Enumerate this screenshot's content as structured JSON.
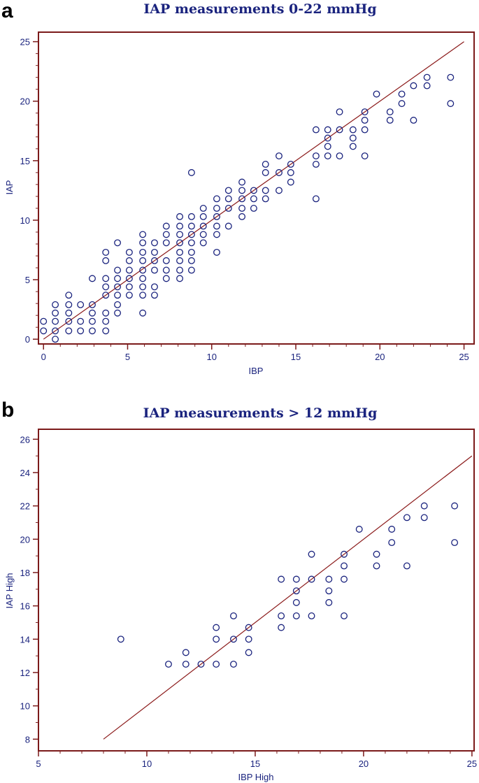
{
  "colors": {
    "frame": "#7b1a1a",
    "point": "#1a237e",
    "line": "#8b1a1a",
    "text": "#1a237e"
  },
  "chart_data": [
    {
      "panel": "a",
      "type": "scatter",
      "title": "IAP measurements 0-22 mmHg",
      "xlabel": "IBP",
      "ylabel": "IAP",
      "xlim": [
        -0.3,
        25.6
      ],
      "ylim": [
        -0.4,
        25.8
      ],
      "xticks": [
        0,
        5,
        10,
        15,
        20,
        25
      ],
      "yticks": [
        0,
        5,
        10,
        15,
        20,
        25
      ],
      "minor_x": 1,
      "minor_y": 1,
      "fit_line": [
        [
          0,
          0
        ],
        [
          25,
          25
        ]
      ],
      "points": [
        [
          0,
          0.7
        ],
        [
          0,
          1.5
        ],
        [
          0.7,
          0
        ],
        [
          0.7,
          0.7
        ],
        [
          0.7,
          1.5
        ],
        [
          0.7,
          2.2
        ],
        [
          0.7,
          2.9
        ],
        [
          1.5,
          0.7
        ],
        [
          1.5,
          1.5
        ],
        [
          1.5,
          2.2
        ],
        [
          1.5,
          2.9
        ],
        [
          1.5,
          3.7
        ],
        [
          2.2,
          0.7
        ],
        [
          2.2,
          1.5
        ],
        [
          2.2,
          2.9
        ],
        [
          2.9,
          0.7
        ],
        [
          2.9,
          1.5
        ],
        [
          2.9,
          2.2
        ],
        [
          2.9,
          2.9
        ],
        [
          2.9,
          5.1
        ],
        [
          3.7,
          0.7
        ],
        [
          3.7,
          1.5
        ],
        [
          3.7,
          2.2
        ],
        [
          3.7,
          3.7
        ],
        [
          3.7,
          4.4
        ],
        [
          3.7,
          5.1
        ],
        [
          3.7,
          6.6
        ],
        [
          3.7,
          7.3
        ],
        [
          4.4,
          2.2
        ],
        [
          4.4,
          2.9
        ],
        [
          4.4,
          3.7
        ],
        [
          4.4,
          4.4
        ],
        [
          4.4,
          5.1
        ],
        [
          4.4,
          5.8
        ],
        [
          4.4,
          8.1
        ],
        [
          5.1,
          3.7
        ],
        [
          5.1,
          4.4
        ],
        [
          5.1,
          5.1
        ],
        [
          5.1,
          5.8
        ],
        [
          5.1,
          6.6
        ],
        [
          5.1,
          7.3
        ],
        [
          5.9,
          2.2
        ],
        [
          5.9,
          3.7
        ],
        [
          5.9,
          4.4
        ],
        [
          5.9,
          5.1
        ],
        [
          5.9,
          5.8
        ],
        [
          5.9,
          6.6
        ],
        [
          5.9,
          7.3
        ],
        [
          5.9,
          8.1
        ],
        [
          5.9,
          8.8
        ],
        [
          6.6,
          3.7
        ],
        [
          6.6,
          4.4
        ],
        [
          6.6,
          5.8
        ],
        [
          6.6,
          6.6
        ],
        [
          6.6,
          7.3
        ],
        [
          6.6,
          8.1
        ],
        [
          7.3,
          5.1
        ],
        [
          7.3,
          5.8
        ],
        [
          7.3,
          6.6
        ],
        [
          7.3,
          8.1
        ],
        [
          7.3,
          8.8
        ],
        [
          7.3,
          9.5
        ],
        [
          8.1,
          5.1
        ],
        [
          8.1,
          5.8
        ],
        [
          8.1,
          6.6
        ],
        [
          8.1,
          7.3
        ],
        [
          8.1,
          8.1
        ],
        [
          8.1,
          8.8
        ],
        [
          8.1,
          9.5
        ],
        [
          8.1,
          10.3
        ],
        [
          8.8,
          5.8
        ],
        [
          8.8,
          6.6
        ],
        [
          8.8,
          7.3
        ],
        [
          8.8,
          8.1
        ],
        [
          8.8,
          8.8
        ],
        [
          8.8,
          9.5
        ],
        [
          8.8,
          10.3
        ],
        [
          8.8,
          14
        ],
        [
          9.5,
          8.1
        ],
        [
          9.5,
          8.8
        ],
        [
          9.5,
          9.5
        ],
        [
          9.5,
          10.3
        ],
        [
          9.5,
          11
        ],
        [
          10.3,
          7.3
        ],
        [
          10.3,
          8.8
        ],
        [
          10.3,
          9.5
        ],
        [
          10.3,
          10.3
        ],
        [
          10.3,
          11
        ],
        [
          10.3,
          11.8
        ],
        [
          11,
          9.5
        ],
        [
          11,
          11
        ],
        [
          11,
          11.8
        ],
        [
          11,
          12.5
        ],
        [
          11.8,
          10.3
        ],
        [
          11.8,
          11
        ],
        [
          11.8,
          11.8
        ],
        [
          11.8,
          12.5
        ],
        [
          11.8,
          13.2
        ],
        [
          12.5,
          11
        ],
        [
          12.5,
          11.8
        ],
        [
          12.5,
          12.5
        ],
        [
          13.2,
          11.8
        ],
        [
          13.2,
          12.5
        ],
        [
          13.2,
          14
        ],
        [
          13.2,
          14.7
        ],
        [
          14,
          12.5
        ],
        [
          14,
          14
        ],
        [
          14,
          15.4
        ],
        [
          14.7,
          13.2
        ],
        [
          14.7,
          14
        ],
        [
          14.7,
          14.7
        ],
        [
          16.2,
          11.8
        ],
        [
          16.2,
          14.7
        ],
        [
          16.2,
          15.4
        ],
        [
          16.2,
          17.6
        ],
        [
          16.9,
          15.4
        ],
        [
          16.9,
          16.2
        ],
        [
          16.9,
          16.9
        ],
        [
          16.9,
          17.6
        ],
        [
          17.6,
          15.4
        ],
        [
          17.6,
          17.6
        ],
        [
          17.6,
          19.1
        ],
        [
          18.4,
          16.2
        ],
        [
          18.4,
          16.9
        ],
        [
          18.4,
          17.6
        ],
        [
          19.1,
          15.4
        ],
        [
          19.1,
          17.6
        ],
        [
          19.1,
          18.4
        ],
        [
          19.1,
          19.1
        ],
        [
          19.8,
          20.6
        ],
        [
          20.6,
          18.4
        ],
        [
          20.6,
          19.1
        ],
        [
          21.3,
          19.8
        ],
        [
          21.3,
          20.6
        ],
        [
          22,
          18.4
        ],
        [
          22,
          21.3
        ],
        [
          22.8,
          21.3
        ],
        [
          22.8,
          22
        ],
        [
          24.2,
          19.8
        ],
        [
          24.2,
          22
        ]
      ]
    },
    {
      "panel": "b",
      "type": "scatter",
      "title": "IAP measurements > 12 mmHg",
      "xlabel": "IBP High",
      "ylabel": "IAP High",
      "xlim": [
        5,
        25.1
      ],
      "ylim": [
        7.3,
        26.6
      ],
      "xticks": [
        5,
        10,
        15,
        20,
        25
      ],
      "yticks": [
        8,
        10,
        12,
        14,
        16,
        18,
        20,
        22,
        24,
        26
      ],
      "minor_x": 1,
      "minor_y": 1,
      "fit_line": [
        [
          8,
          8
        ],
        [
          25,
          25
        ]
      ],
      "points": [
        [
          8.8,
          14
        ],
        [
          11,
          12.5
        ],
        [
          11.8,
          12.5
        ],
        [
          11.8,
          13.2
        ],
        [
          12.5,
          12.5
        ],
        [
          13.2,
          12.5
        ],
        [
          13.2,
          14
        ],
        [
          13.2,
          14.7
        ],
        [
          14,
          12.5
        ],
        [
          14,
          14
        ],
        [
          14,
          15.4
        ],
        [
          14.7,
          13.2
        ],
        [
          14.7,
          14
        ],
        [
          14.7,
          14.7
        ],
        [
          16.2,
          14.7
        ],
        [
          16.2,
          15.4
        ],
        [
          16.2,
          17.6
        ],
        [
          16.9,
          15.4
        ],
        [
          16.9,
          16.2
        ],
        [
          16.9,
          16.9
        ],
        [
          16.9,
          17.6
        ],
        [
          17.6,
          15.4
        ],
        [
          17.6,
          17.6
        ],
        [
          17.6,
          19.1
        ],
        [
          18.4,
          16.2
        ],
        [
          18.4,
          16.9
        ],
        [
          18.4,
          17.6
        ],
        [
          19.1,
          15.4
        ],
        [
          19.1,
          17.6
        ],
        [
          19.1,
          18.4
        ],
        [
          19.1,
          19.1
        ],
        [
          19.8,
          20.6
        ],
        [
          20.6,
          18.4
        ],
        [
          20.6,
          19.1
        ],
        [
          21.3,
          19.8
        ],
        [
          21.3,
          20.6
        ],
        [
          22,
          18.4
        ],
        [
          22,
          21.3
        ],
        [
          22.8,
          21.3
        ],
        [
          22.8,
          22
        ],
        [
          24.2,
          19.8
        ],
        [
          24.2,
          22
        ]
      ]
    }
  ]
}
